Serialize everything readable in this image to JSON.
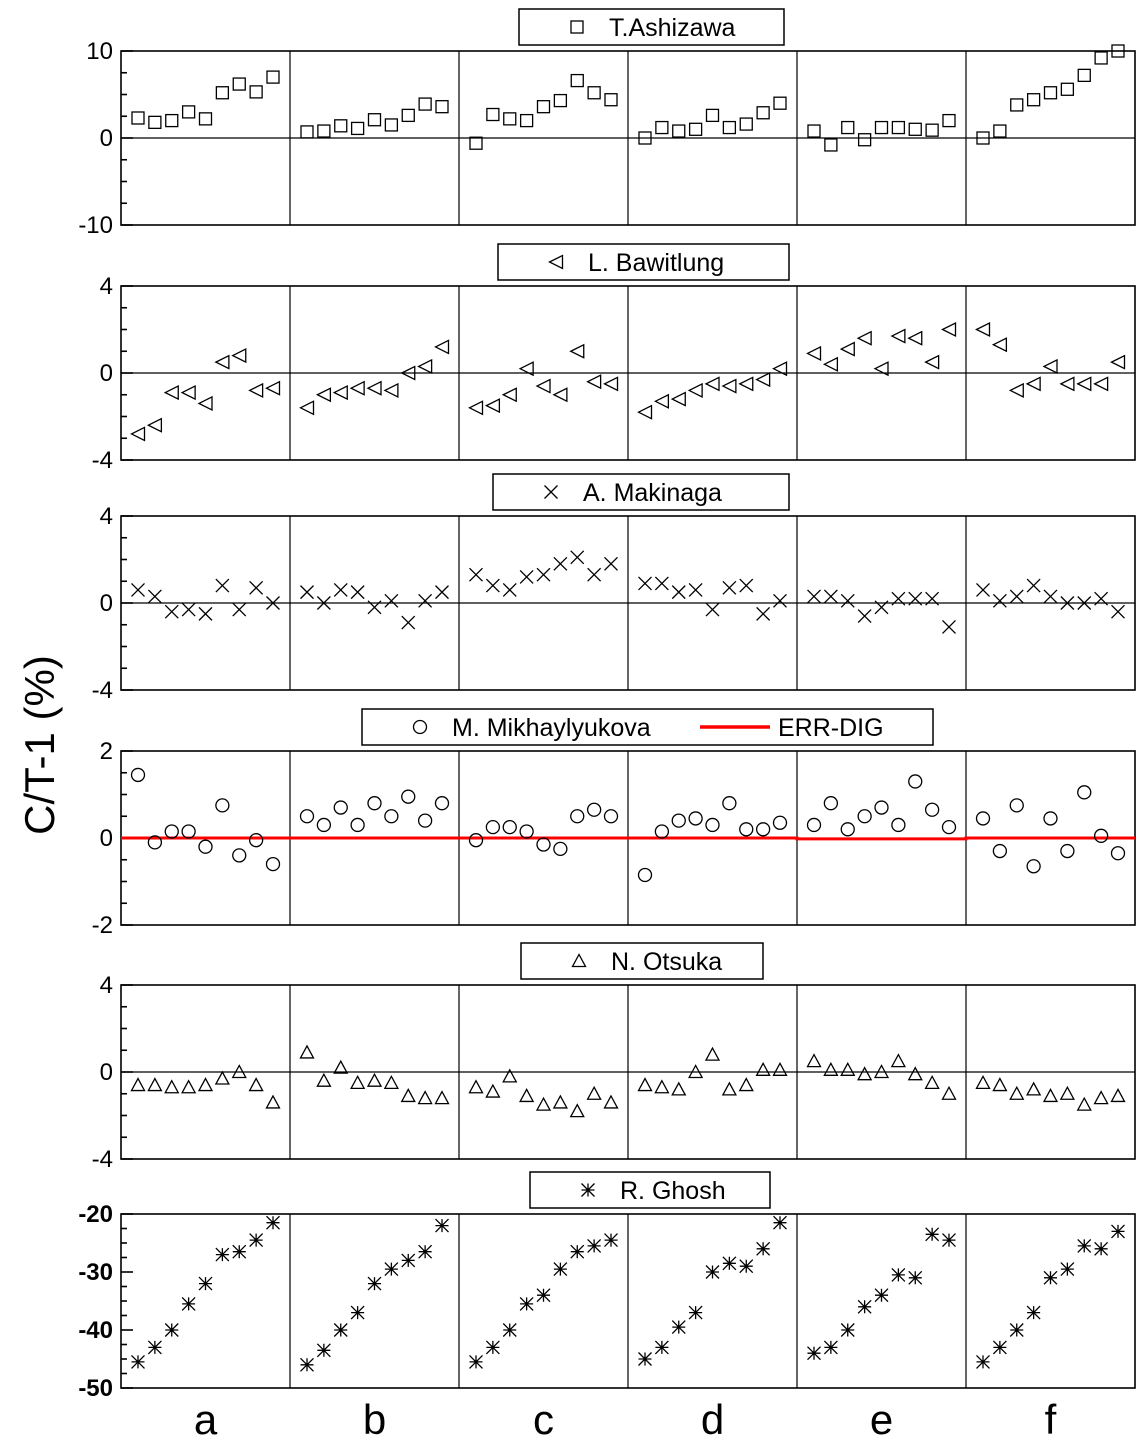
{
  "figure": {
    "ylabel": "C/T-1 (%)",
    "group_labels": [
      "a",
      "b",
      "c",
      "d",
      "e",
      "f"
    ]
  },
  "chart_data": [
    {
      "type": "scatter",
      "marker": "square",
      "legend": [
        "T.Ashizawa"
      ],
      "ylim": [
        -10,
        10
      ],
      "yticks": [
        "10",
        "0",
        "-10"
      ],
      "ytick_values": [
        10,
        0,
        -10
      ],
      "zero_line": true,
      "groups": [
        "a",
        "b",
        "c",
        "d",
        "e",
        "f"
      ],
      "series": [
        {
          "name": "T.Ashizawa",
          "values": [
            [
              2.3,
              1.8,
              2.0,
              3.0,
              2.2,
              5.2,
              6.2,
              5.3,
              7.0
            ],
            [
              0.7,
              0.8,
              1.4,
              1.1,
              2.1,
              1.5,
              2.6,
              3.9,
              3.6
            ],
            [
              -0.6,
              2.7,
              2.2,
              2.0,
              3.6,
              4.3,
              6.6,
              5.2,
              4.4
            ],
            [
              0.0,
              1.2,
              0.8,
              1.0,
              2.6,
              1.2,
              1.6,
              2.9,
              4.0
            ],
            [
              0.8,
              -0.8,
              1.2,
              -0.2,
              1.2,
              1.2,
              1.0,
              0.9,
              2.0
            ],
            [
              0.0,
              0.8,
              3.8,
              4.4,
              5.2,
              5.6,
              7.2,
              9.2,
              10.0
            ]
          ]
        }
      ]
    },
    {
      "type": "scatter",
      "marker": "triangle-left",
      "legend": [
        "L. Bawitlung"
      ],
      "ylim": [
        -4,
        4
      ],
      "yticks": [
        "4",
        "0",
        "-4"
      ],
      "ytick_values": [
        4,
        0,
        -4
      ],
      "zero_line": true,
      "groups": [
        "a",
        "b",
        "c",
        "d",
        "e",
        "f"
      ],
      "series": [
        {
          "name": "L. Bawitlung",
          "values": [
            [
              -2.8,
              -2.4,
              -0.9,
              -0.9,
              -1.4,
              0.5,
              0.8,
              -0.8,
              -0.7
            ],
            [
              -1.6,
              -1.0,
              -0.9,
              -0.7,
              -0.7,
              -0.8,
              0.0,
              0.3,
              1.2
            ],
            [
              -1.6,
              -1.5,
              -1.0,
              0.2,
              -0.6,
              -1.0,
              1.0,
              -0.4,
              -0.5
            ],
            [
              -1.8,
              -1.3,
              -1.2,
              -0.8,
              -0.5,
              -0.6,
              -0.5,
              -0.3,
              0.2
            ],
            [
              0.9,
              0.4,
              1.1,
              1.6,
              0.2,
              1.7,
              1.6,
              0.5,
              2.0
            ],
            [
              2.0,
              1.3,
              -0.8,
              -0.5,
              0.3,
              -0.5,
              -0.5,
              -0.5,
              0.5
            ]
          ]
        }
      ]
    },
    {
      "type": "scatter",
      "marker": "x",
      "legend": [
        "A. Makinaga"
      ],
      "ylim": [
        -4,
        4
      ],
      "yticks": [
        "4",
        "0",
        "-4"
      ],
      "ytick_values": [
        4,
        0,
        -4
      ],
      "zero_line": true,
      "groups": [
        "a",
        "b",
        "c",
        "d",
        "e",
        "f"
      ],
      "series": [
        {
          "name": "A. Makinaga",
          "values": [
            [
              0.6,
              0.3,
              -0.4,
              -0.3,
              -0.5,
              0.8,
              -0.3,
              0.7,
              0.0
            ],
            [
              0.5,
              0.0,
              0.6,
              0.5,
              -0.2,
              0.1,
              -0.9,
              0.1,
              0.5
            ],
            [
              1.3,
              0.8,
              0.6,
              1.2,
              1.3,
              1.8,
              2.1,
              1.3,
              1.8
            ],
            [
              0.9,
              0.9,
              0.5,
              0.6,
              -0.3,
              0.7,
              0.8,
              -0.5,
              0.1
            ],
            [
              0.3,
              0.3,
              0.1,
              -0.6,
              -0.2,
              0.2,
              0.2,
              0.2,
              -1.1
            ],
            [
              0.6,
              0.1,
              0.3,
              0.8,
              0.3,
              0.0,
              0.0,
              0.2,
              -0.4
            ]
          ]
        }
      ]
    },
    {
      "type": "scatter",
      "marker": "circle",
      "legend": [
        "M. Mikhaylyukova",
        "ERR-DIG"
      ],
      "ylim": [
        -2,
        2
      ],
      "yticks": [
        "2",
        "0",
        "-2"
      ],
      "ytick_values": [
        2,
        0,
        -2
      ],
      "zero_line": false,
      "groups": [
        "a",
        "b",
        "c",
        "d",
        "e",
        "f"
      ],
      "series": [
        {
          "name": "M. Mikhaylyukova",
          "values": [
            [
              1.45,
              -0.1,
              0.15,
              0.15,
              -0.2,
              0.75,
              -0.4,
              -0.05,
              -0.6
            ],
            [
              0.5,
              0.3,
              0.7,
              0.3,
              0.8,
              0.5,
              0.95,
              0.4,
              0.8
            ],
            [
              -0.05,
              0.25,
              0.25,
              0.15,
              -0.15,
              -0.25,
              0.5,
              0.65,
              0.5
            ],
            [
              -0.85,
              0.15,
              0.4,
              0.45,
              0.3,
              0.8,
              0.2,
              0.2,
              0.35
            ],
            [
              0.3,
              0.8,
              0.2,
              0.5,
              0.7,
              0.3,
              1.3,
              0.65,
              0.25
            ],
            [
              0.45,
              -0.3,
              0.75,
              -0.65,
              0.45,
              -0.3,
              1.05,
              0.05,
              -0.35
            ]
          ]
        }
      ],
      "line": {
        "name": "ERR-DIG",
        "color": "#ff0000",
        "values": [
          0,
          0,
          0,
          0,
          -0.02,
          0
        ]
      }
    },
    {
      "type": "scatter",
      "marker": "triangle-up",
      "legend": [
        "N. Otsuka"
      ],
      "ylim": [
        -4,
        4
      ],
      "yticks": [
        "4",
        "0",
        "-4"
      ],
      "ytick_values": [
        4,
        0,
        -4
      ],
      "zero_line": true,
      "groups": [
        "a",
        "b",
        "c",
        "d",
        "e",
        "f"
      ],
      "series": [
        {
          "name": "N. Otsuka",
          "values": [
            [
              -0.6,
              -0.6,
              -0.7,
              -0.7,
              -0.6,
              -0.3,
              0.0,
              -0.6,
              -1.4
            ],
            [
              0.9,
              -0.4,
              0.2,
              -0.5,
              -0.4,
              -0.5,
              -1.1,
              -1.2,
              -1.2
            ],
            [
              -0.7,
              -0.9,
              -0.2,
              -1.1,
              -1.5,
              -1.4,
              -1.8,
              -1.0,
              -1.4
            ],
            [
              -0.6,
              -0.7,
              -0.8,
              0.0,
              0.8,
              -0.8,
              -0.6,
              0.1,
              0.1
            ],
            [
              0.5,
              0.1,
              0.1,
              -0.1,
              0.0,
              0.5,
              -0.1,
              -0.5,
              -1.0
            ],
            [
              -0.5,
              -0.6,
              -1.0,
              -0.8,
              -1.1,
              -1.0,
              -1.5,
              -1.2,
              -1.1
            ]
          ]
        }
      ]
    },
    {
      "type": "scatter",
      "marker": "x-star",
      "legend": [
        "R. Ghosh"
      ],
      "ylim": [
        -50,
        -20
      ],
      "yticks": [
        "-20",
        "-30",
        "-40",
        "-50"
      ],
      "ytick_values": [
        -20,
        -30,
        -40,
        -50
      ],
      "zero_line": false,
      "groups": [
        "a",
        "b",
        "c",
        "d",
        "e",
        "f"
      ],
      "series": [
        {
          "name": "R. Ghosh",
          "values": [
            [
              -45.5,
              -43.0,
              -40.0,
              -35.5,
              -32.0,
              -27.0,
              -26.5,
              -24.5,
              -21.5
            ],
            [
              -46.0,
              -43.5,
              -40.0,
              -37.0,
              -32.0,
              -29.5,
              -28.0,
              -26.5,
              -22.0
            ],
            [
              -45.5,
              -43.0,
              -40.0,
              -35.5,
              -34.0,
              -29.5,
              -26.5,
              -25.5,
              -24.5
            ],
            [
              -45.0,
              -43.0,
              -39.5,
              -37.0,
              -30.0,
              -28.5,
              -29.0,
              -26.0,
              -21.5
            ],
            [
              -44.0,
              -43.0,
              -40.0,
              -36.0,
              -34.0,
              -30.5,
              -31.0,
              -23.5,
              -24.5
            ],
            [
              -45.5,
              -43.0,
              -40.0,
              -37.0,
              -31.0,
              -29.5,
              -25.5,
              -26.0,
              -23.0
            ]
          ]
        }
      ]
    }
  ]
}
